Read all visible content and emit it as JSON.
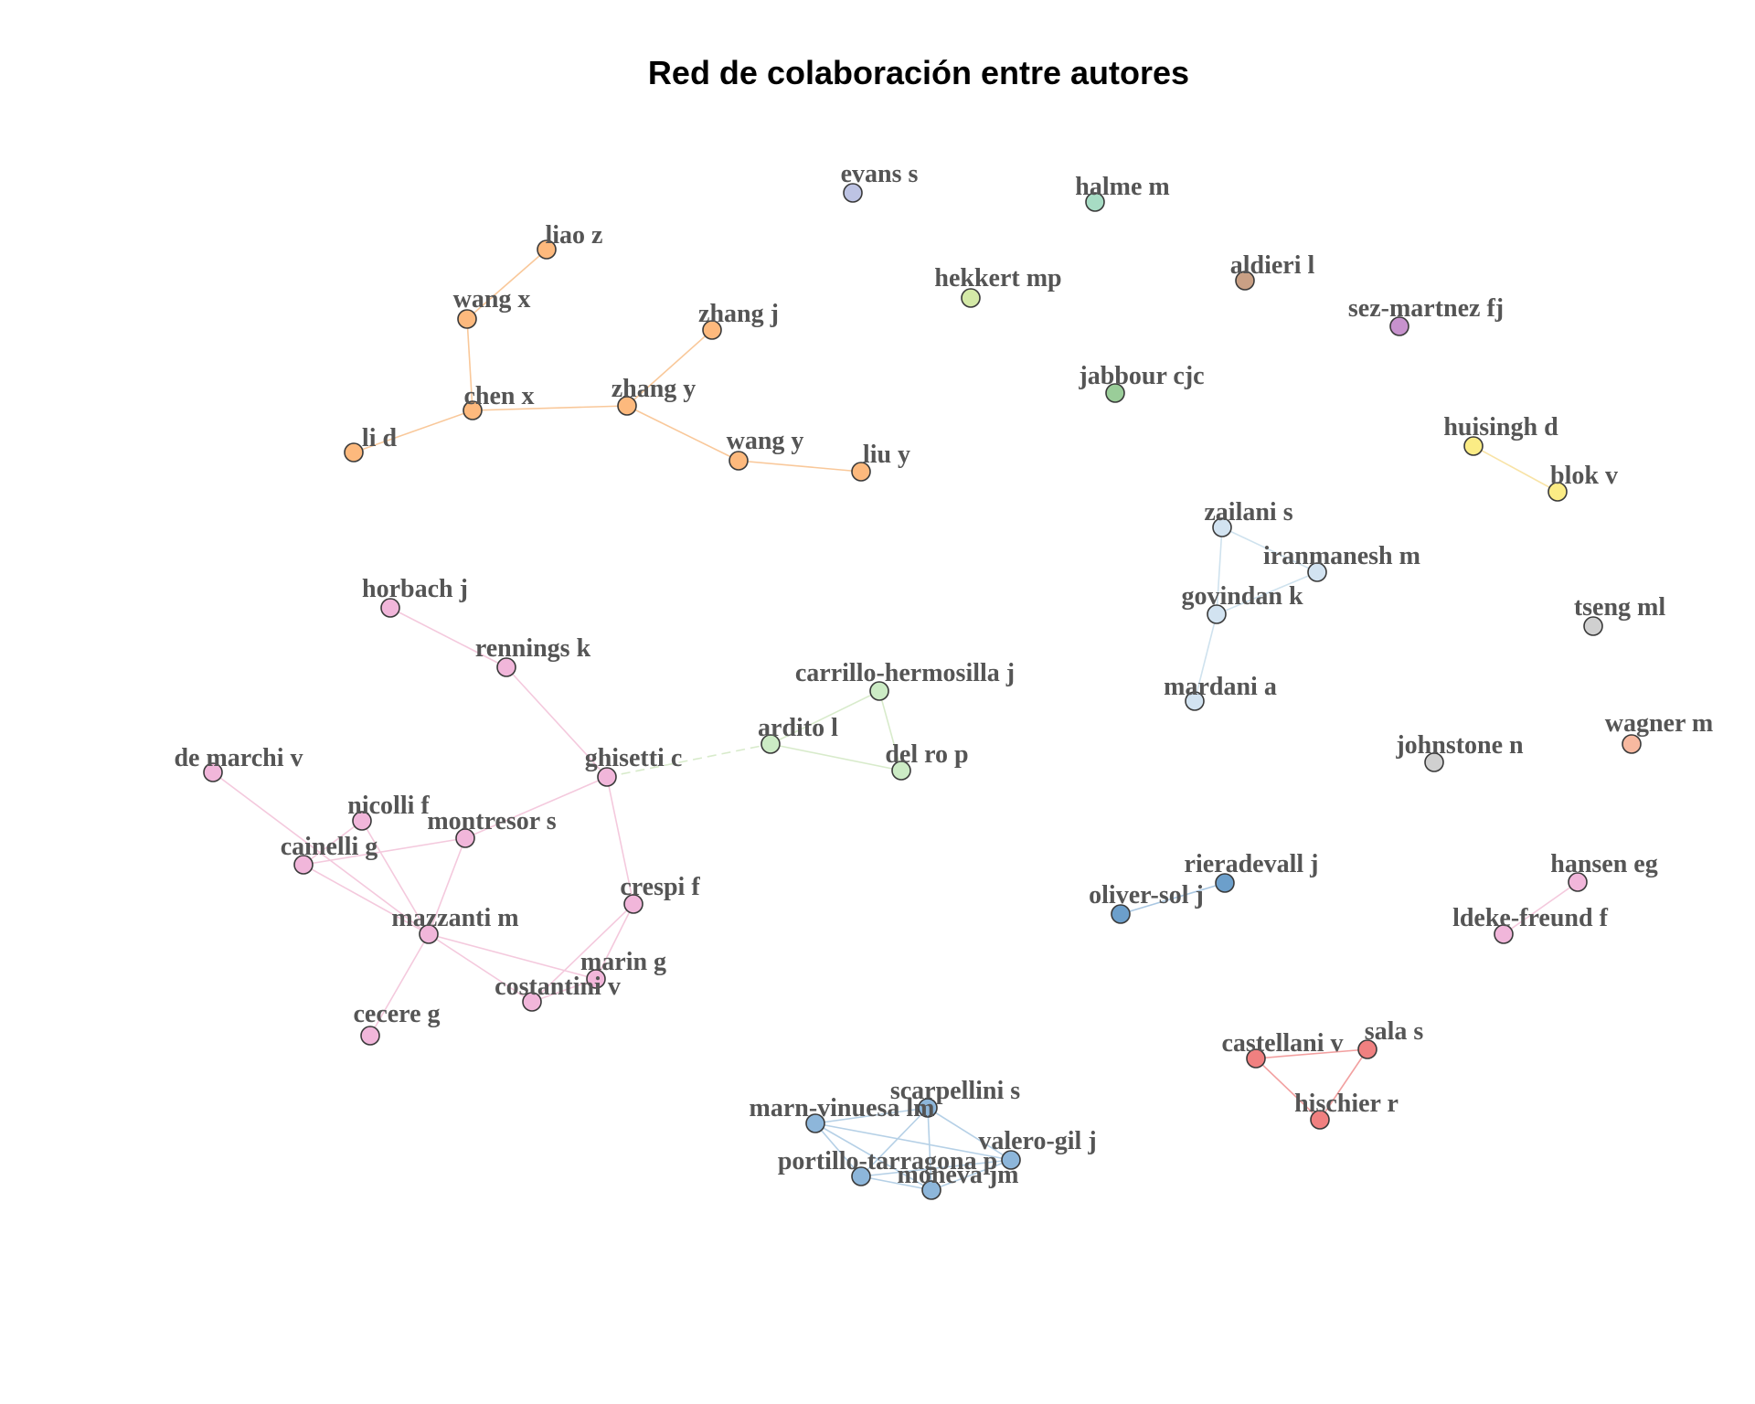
{
  "title": "Red de colaboración entre autores",
  "colors": {
    "orange": "#FDB97D",
    "orange_edge": "#F9C89A",
    "pink": "#F1B6DA",
    "pink_edge": "#F4C9DD",
    "lightgreen": "#CCEBC5",
    "lightgreen_edge": "#D8EBCB",
    "lightblue": "#D2E3F1",
    "lightblue_edge": "#CFE2EE",
    "steelblue": "#8DB6DA",
    "steelblue_edge": "#B5D0E6",
    "blue": "#6C9FCB",
    "blue_edge": "#A9C7E2",
    "red": "#F08080",
    "red_edge": "#F2A0A0",
    "yellow": "#FBEC85",
    "yellow_edge": "#F8E3A6",
    "lavender": "#BDC3E3",
    "mint": "#A7DCC4",
    "limegreen": "#D4E9A7",
    "brown": "#C9A085",
    "purple": "#C792CD",
    "green": "#9ACD99",
    "gray": "#D0D0D0",
    "salmon": "#F8B9A0"
  },
  "nodes": [
    {
      "id": "liao_z",
      "label": "liao z",
      "color": "orange"
    },
    {
      "id": "wang_x",
      "label": "wang x",
      "color": "orange"
    },
    {
      "id": "chen_x",
      "label": "chen x",
      "color": "orange"
    },
    {
      "id": "li_d",
      "label": "li d",
      "color": "orange"
    },
    {
      "id": "zhang_j",
      "label": "zhang j",
      "color": "orange"
    },
    {
      "id": "zhang_y",
      "label": "zhang y",
      "color": "orange"
    },
    {
      "id": "wang_y",
      "label": "wang y",
      "color": "orange"
    },
    {
      "id": "liu_y",
      "label": "liu y",
      "color": "orange"
    },
    {
      "id": "evans_s",
      "label": "evans s",
      "color": "lavender"
    },
    {
      "id": "halme_m",
      "label": "halme m",
      "color": "mint"
    },
    {
      "id": "hekkert_mp",
      "label": "hekkert mp",
      "color": "limegreen"
    },
    {
      "id": "aldieri_l",
      "label": "aldieri l",
      "color": "brown"
    },
    {
      "id": "sez_martnez_fj",
      "label": "sez-martnez fj",
      "color": "purple"
    },
    {
      "id": "jabbour_cjc",
      "label": "jabbour cjc",
      "color": "green"
    },
    {
      "id": "huisingh_d",
      "label": "huisingh d",
      "color": "yellow"
    },
    {
      "id": "blok_v",
      "label": "blok v",
      "color": "yellow"
    },
    {
      "id": "zailani_s",
      "label": "zailani s",
      "color": "lightblue"
    },
    {
      "id": "iranmanesh_m",
      "label": "iranmanesh m",
      "color": "lightblue"
    },
    {
      "id": "govindan_k",
      "label": "govindan k",
      "color": "lightblue"
    },
    {
      "id": "mardani_a",
      "label": "mardani a",
      "color": "lightblue"
    },
    {
      "id": "tseng_ml",
      "label": "tseng ml",
      "color": "gray"
    },
    {
      "id": "johnstone_n",
      "label": "johnstone n",
      "color": "gray"
    },
    {
      "id": "wagner_m",
      "label": "wagner m",
      "color": "salmon"
    },
    {
      "id": "horbach_j",
      "label": "horbach j",
      "color": "pink"
    },
    {
      "id": "rennings_k",
      "label": "rennings k",
      "color": "pink"
    },
    {
      "id": "ghisetti_c",
      "label": "ghisetti c",
      "color": "pink"
    },
    {
      "id": "de_marchi_v",
      "label": "de marchi v",
      "color": "pink"
    },
    {
      "id": "nicolli_f",
      "label": "nicolli f",
      "color": "pink"
    },
    {
      "id": "montresor_s",
      "label": "montresor s",
      "color": "pink"
    },
    {
      "id": "cainelli_g",
      "label": "cainelli g",
      "color": "pink"
    },
    {
      "id": "mazzanti_m",
      "label": "mazzanti m",
      "color": "pink"
    },
    {
      "id": "crespi_f",
      "label": "crespi f",
      "color": "pink"
    },
    {
      "id": "marin_g",
      "label": "marin g",
      "color": "pink"
    },
    {
      "id": "costantini_v",
      "label": "costantini v",
      "color": "pink"
    },
    {
      "id": "cecere_g",
      "label": "cecere g",
      "color": "pink"
    },
    {
      "id": "carrillo_hermosilla_j",
      "label": "carrillo-hermosilla j",
      "color": "lightgreen"
    },
    {
      "id": "ardito_l",
      "label": "ardito l",
      "color": "lightgreen"
    },
    {
      "id": "del_ro_p",
      "label": "del ro p",
      "color": "lightgreen"
    },
    {
      "id": "rieradevall_j",
      "label": "rieradevall j",
      "color": "blue"
    },
    {
      "id": "oliver_sol_j",
      "label": "oliver-sol j",
      "color": "blue"
    },
    {
      "id": "hansen_eg",
      "label": "hansen eg",
      "color": "pink"
    },
    {
      "id": "ldeke_freund_f",
      "label": "ldeke-freund f",
      "color": "pink"
    },
    {
      "id": "castellani_v",
      "label": "castellani v",
      "color": "red"
    },
    {
      "id": "sala_s",
      "label": "sala s",
      "color": "red"
    },
    {
      "id": "hischier_r",
      "label": "hischier r",
      "color": "red"
    },
    {
      "id": "scarpellini_s",
      "label": "scarpellini s",
      "color": "steelblue"
    },
    {
      "id": "marn_vinuesa_lm",
      "label": "marn-vinuesa lm",
      "color": "steelblue"
    },
    {
      "id": "valero_gil_j",
      "label": "valero-gil j",
      "color": "steelblue"
    },
    {
      "id": "portillo_tarragona_p",
      "label": "portillo-tarragona p",
      "color": "steelblue"
    },
    {
      "id": "moneva_jm",
      "label": "moneva jm",
      "color": "steelblue"
    }
  ],
  "edges": [
    {
      "from": "liao_z",
      "to": "wang_x",
      "color": "orange_edge"
    },
    {
      "from": "wang_x",
      "to": "chen_x",
      "color": "orange_edge"
    },
    {
      "from": "chen_x",
      "to": "li_d",
      "color": "orange_edge"
    },
    {
      "from": "chen_x",
      "to": "zhang_y",
      "color": "orange_edge"
    },
    {
      "from": "zhang_y",
      "to": "zhang_j",
      "color": "orange_edge"
    },
    {
      "from": "zhang_y",
      "to": "wang_y",
      "color": "orange_edge"
    },
    {
      "from": "wang_y",
      "to": "liu_y",
      "color": "orange_edge"
    },
    {
      "from": "huisingh_d",
      "to": "blok_v",
      "color": "yellow_edge"
    },
    {
      "from": "zailani_s",
      "to": "iranmanesh_m",
      "color": "lightblue_edge"
    },
    {
      "from": "zailani_s",
      "to": "govindan_k",
      "color": "lightblue_edge"
    },
    {
      "from": "iranmanesh_m",
      "to": "govindan_k",
      "color": "lightblue_edge"
    },
    {
      "from": "govindan_k",
      "to": "mardani_a",
      "color": "lightblue_edge"
    },
    {
      "from": "horbach_j",
      "to": "rennings_k",
      "color": "pink_edge"
    },
    {
      "from": "rennings_k",
      "to": "ghisetti_c",
      "color": "pink_edge"
    },
    {
      "from": "ghisetti_c",
      "to": "montresor_s",
      "color": "pink_edge"
    },
    {
      "from": "ghisetti_c",
      "to": "crespi_f",
      "color": "pink_edge"
    },
    {
      "from": "ghisetti_c",
      "to": "ardito_l",
      "color": "lightgreen_edge",
      "dashed": true
    },
    {
      "from": "de_marchi_v",
      "to": "mazzanti_m",
      "color": "pink_edge"
    },
    {
      "from": "nicolli_f",
      "to": "mazzanti_m",
      "color": "pink_edge"
    },
    {
      "from": "cainelli_g",
      "to": "montresor_s",
      "color": "pink_edge"
    },
    {
      "from": "cainelli_g",
      "to": "nicolli_f",
      "color": "pink_edge"
    },
    {
      "from": "cainelli_g",
      "to": "mazzanti_m",
      "color": "pink_edge"
    },
    {
      "from": "montresor_s",
      "to": "mazzanti_m",
      "color": "pink_edge"
    },
    {
      "from": "mazzanti_m",
      "to": "marin_g",
      "color": "pink_edge"
    },
    {
      "from": "mazzanti_m",
      "to": "costantini_v",
      "color": "pink_edge"
    },
    {
      "from": "mazzanti_m",
      "to": "cecere_g",
      "color": "pink_edge"
    },
    {
      "from": "crespi_f",
      "to": "marin_g",
      "color": "pink_edge"
    },
    {
      "from": "crespi_f",
      "to": "costantini_v",
      "color": "pink_edge"
    },
    {
      "from": "marin_g",
      "to": "costantini_v",
      "color": "pink_edge"
    },
    {
      "from": "carrillo_hermosilla_j",
      "to": "ardito_l",
      "color": "lightgreen_edge"
    },
    {
      "from": "carrillo_hermosilla_j",
      "to": "del_ro_p",
      "color": "lightgreen_edge"
    },
    {
      "from": "ardito_l",
      "to": "del_ro_p",
      "color": "lightgreen_edge"
    },
    {
      "from": "rieradevall_j",
      "to": "oliver_sol_j",
      "color": "blue_edge"
    },
    {
      "from": "hansen_eg",
      "to": "ldeke_freund_f",
      "color": "pink_edge"
    },
    {
      "from": "castellani_v",
      "to": "sala_s",
      "color": "red_edge"
    },
    {
      "from": "castellani_v",
      "to": "hischier_r",
      "color": "red_edge"
    },
    {
      "from": "sala_s",
      "to": "hischier_r",
      "color": "red_edge"
    },
    {
      "from": "scarpellini_s",
      "to": "marn_vinuesa_lm",
      "color": "steelblue_edge"
    },
    {
      "from": "scarpellini_s",
      "to": "valero_gil_j",
      "color": "steelblue_edge"
    },
    {
      "from": "scarpellini_s",
      "to": "portillo_tarragona_p",
      "color": "steelblue_edge"
    },
    {
      "from": "scarpellini_s",
      "to": "moneva_jm",
      "color": "steelblue_edge"
    },
    {
      "from": "marn_vinuesa_lm",
      "to": "portillo_tarragona_p",
      "color": "steelblue_edge"
    },
    {
      "from": "marn_vinuesa_lm",
      "to": "moneva_jm",
      "color": "steelblue_edge"
    },
    {
      "from": "marn_vinuesa_lm",
      "to": "valero_gil_j",
      "color": "steelblue_edge"
    },
    {
      "from": "valero_gil_j",
      "to": "moneva_jm",
      "color": "steelblue_edge"
    },
    {
      "from": "portillo_tarragona_p",
      "to": "moneva_jm",
      "color": "steelblue_edge"
    },
    {
      "from": "portillo_tarragona_p",
      "to": "valero_gil_j",
      "color": "steelblue_edge"
    }
  ]
}
